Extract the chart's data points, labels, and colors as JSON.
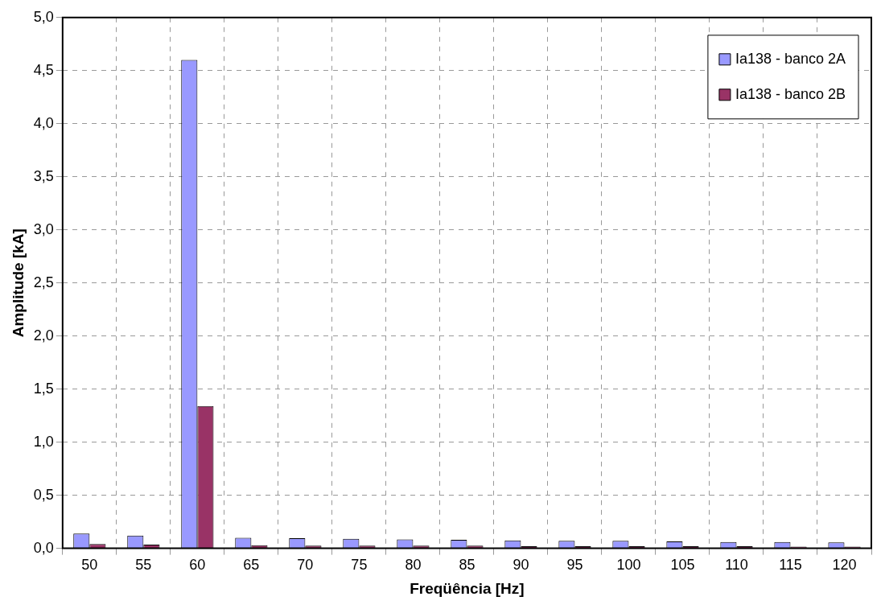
{
  "chart_data": {
    "type": "bar",
    "xlabel": "Freqüência [Hz]",
    "ylabel": "Amplitude [kA]",
    "categories": [
      "50",
      "55",
      "60",
      "65",
      "70",
      "75",
      "80",
      "85",
      "90",
      "95",
      "100",
      "105",
      "110",
      "115",
      "120"
    ],
    "series": [
      {
        "name": "Ia138 - banco 2A",
        "color": "#9999ff",
        "values": [
          0.14,
          0.12,
          4.6,
          0.1,
          0.095,
          0.09,
          0.085,
          0.08,
          0.075,
          0.07,
          0.07,
          0.065,
          0.06,
          0.06,
          0.055
        ]
      },
      {
        "name": "Ia138 - banco 2B",
        "color": "#993366",
        "values": [
          0.04,
          0.035,
          1.34,
          0.03,
          0.025,
          0.025,
          0.025,
          0.025,
          0.02,
          0.02,
          0.02,
          0.02,
          0.02,
          0.015,
          0.015
        ]
      }
    ],
    "ylim": [
      0,
      5
    ],
    "yticks": [
      {
        "value": 0,
        "label": "0,0"
      },
      {
        "value": 0.5,
        "label": "0,5"
      },
      {
        "value": 1,
        "label": "1,0"
      },
      {
        "value": 1.5,
        "label": "1,5"
      },
      {
        "value": 2,
        "label": "2,0"
      },
      {
        "value": 2.5,
        "label": "2,5"
      },
      {
        "value": 3,
        "label": "3,0"
      },
      {
        "value": 3.5,
        "label": "3,5"
      },
      {
        "value": 4,
        "label": "4,0"
      },
      {
        "value": 4.5,
        "label": "4,5"
      },
      {
        "value": 5,
        "label": "5,0"
      }
    ],
    "grid": true,
    "legend": "top right"
  }
}
